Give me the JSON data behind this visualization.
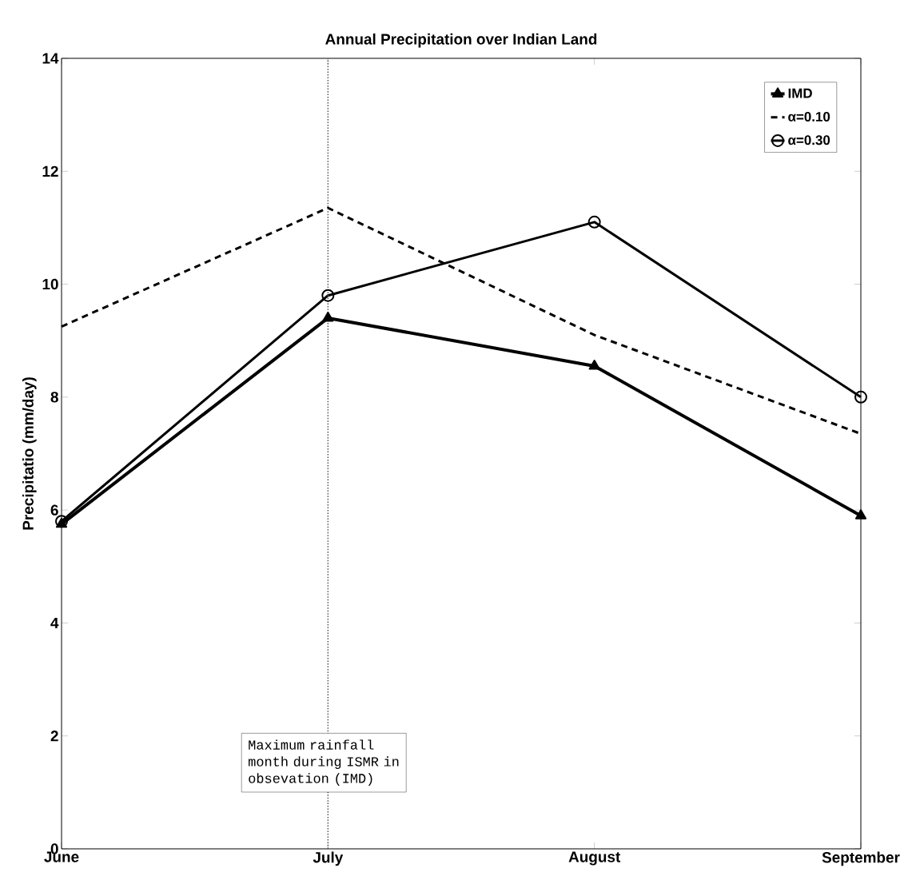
{
  "chart_data": {
    "type": "line",
    "title": "Annual Precipitation over Indian Land",
    "ylabel": "Precipitatio (mm/day)",
    "categories": [
      "June",
      "July",
      "August",
      "September"
    ],
    "series": [
      {
        "name": "IMD",
        "color": "#000000",
        "values": [
          5.75,
          9.4,
          8.55,
          5.9
        ],
        "marker": "triangle",
        "line_style": "solid"
      },
      {
        "name": "α=0.10",
        "color": "#000000",
        "values": [
          9.25,
          11.35,
          9.1,
          7.35
        ],
        "marker": "none",
        "line_style": "dashed"
      },
      {
        "name": "α=0.30",
        "color": "#000000",
        "values": [
          5.8,
          9.8,
          11.1,
          8.0
        ],
        "marker": "circle",
        "line_style": "solid"
      }
    ],
    "ylim": [
      0,
      14
    ],
    "yticks": [
      0,
      2,
      4,
      6,
      8,
      10,
      12,
      14
    ],
    "ref_lines": [
      {
        "axis": "x",
        "value": "July",
        "line_style": "dotted",
        "color": "#555555"
      }
    ],
    "annotations": [
      "Maximum rainfall month during ISMR in obsevation (IMD)"
    ],
    "legend": "top right",
    "grid": false
  }
}
